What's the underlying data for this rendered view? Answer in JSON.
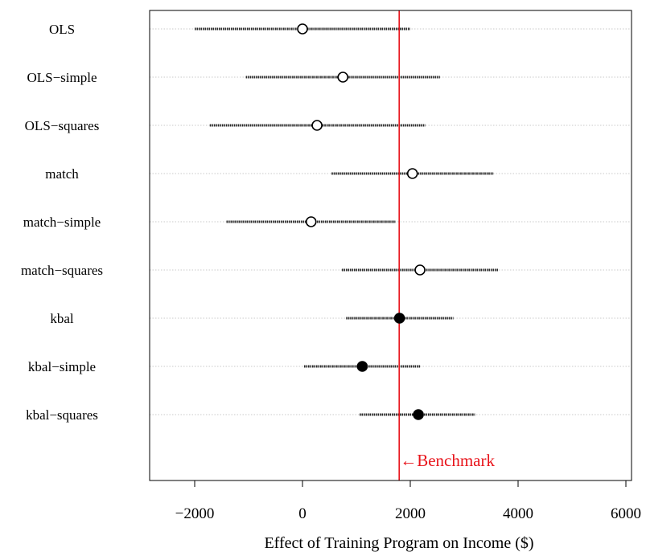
{
  "chart_data": {
    "type": "scatter",
    "title": "",
    "xlabel": "Effect of Training Program on Income ($)",
    "ylabel": "",
    "xlim": [
      -2800,
      6000
    ],
    "x_ticks": [
      -2000,
      0,
      2000,
      4000,
      6000
    ],
    "x_tick_labels": [
      "−2000",
      "0",
      "2000",
      "4000",
      "6000"
    ],
    "grid": "horizontal dotted lines at each row",
    "rows": [
      {
        "label": "OLS",
        "estimate": 0,
        "lower": -2000,
        "upper": 2000,
        "filled": false
      },
      {
        "label": "OLS−simple",
        "estimate": 750,
        "lower": -1050,
        "upper": 2550,
        "filled": false
      },
      {
        "label": "OLS−squares",
        "estimate": 270,
        "lower": -1720,
        "upper": 2280,
        "filled": false
      },
      {
        "label": "match",
        "estimate": 2040,
        "lower": 540,
        "upper": 3540,
        "filled": false
      },
      {
        "label": "match−simple",
        "estimate": 160,
        "lower": -1410,
        "upper": 1730,
        "filled": false
      },
      {
        "label": "match−squares",
        "estimate": 2180,
        "lower": 730,
        "upper": 3630,
        "filled": false
      },
      {
        "label": "kbal",
        "estimate": 1800,
        "lower": 810,
        "upper": 2800,
        "filled": true
      },
      {
        "label": "kbal−simple",
        "estimate": 1110,
        "lower": 30,
        "upper": 2190,
        "filled": true
      },
      {
        "label": "kbal−squares",
        "estimate": 2150,
        "lower": 1060,
        "upper": 3200,
        "filled": true
      }
    ],
    "benchmark": {
      "value": 1794,
      "label": "←Benchmark",
      "color": "#e8141b"
    }
  }
}
